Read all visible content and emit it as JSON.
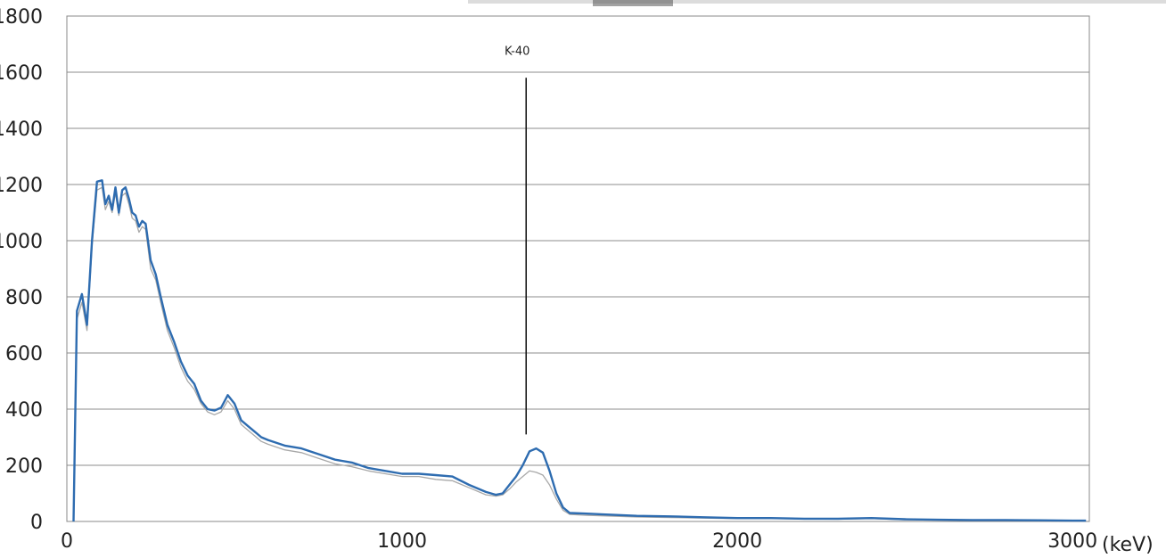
{
  "chart_data": {
    "type": "line",
    "title": "",
    "xlabel": "",
    "ylabel": "",
    "x_unit": "(keV)",
    "xlim": [
      0,
      3050
    ],
    "ylim": [
      0,
      1800
    ],
    "x_ticks": [
      0,
      1000,
      2000,
      3000
    ],
    "x_tick_labels": [
      "0",
      "1000",
      "2000",
      "3000"
    ],
    "y_ticks": [
      0,
      200,
      400,
      600,
      800,
      1000,
      1200,
      1400,
      1600,
      1800
    ],
    "y_tick_labels": [
      "0",
      "200",
      "400",
      "600",
      "800",
      "1000",
      "1200",
      "1400",
      "1600",
      "1800"
    ],
    "grid": "horizontal",
    "legend": "none",
    "annotations": [
      {
        "text": "K-40",
        "x": 1370,
        "y_from": 310,
        "y_to": 1580
      }
    ],
    "series": [
      {
        "color": "#2e6cb0",
        "x": [
          20,
          30,
          45,
          60,
          75,
          90,
          105,
          115,
          125,
          135,
          145,
          155,
          165,
          175,
          185,
          195,
          205,
          215,
          225,
          235,
          250,
          265,
          280,
          300,
          320,
          340,
          360,
          380,
          400,
          420,
          440,
          460,
          480,
          500,
          520,
          540,
          560,
          580,
          600,
          650,
          700,
          750,
          800,
          850,
          900,
          950,
          1000,
          1050,
          1100,
          1150,
          1200,
          1250,
          1280,
          1300,
          1320,
          1340,
          1360,
          1380,
          1400,
          1420,
          1440,
          1460,
          1480,
          1500,
          1550,
          1600,
          1700,
          1800,
          1900,
          2000,
          2100,
          2200,
          2300,
          2400,
          2500,
          2600,
          2700,
          2800,
          2900,
          3000,
          3040
        ],
        "values": [
          0,
          750,
          810,
          700,
          1000,
          1210,
          1215,
          1130,
          1160,
          1110,
          1190,
          1100,
          1180,
          1190,
          1150,
          1100,
          1090,
          1050,
          1070,
          1060,
          930,
          880,
          800,
          700,
          640,
          570,
          520,
          490,
          430,
          400,
          395,
          405,
          450,
          420,
          360,
          340,
          320,
          300,
          290,
          270,
          260,
          240,
          220,
          210,
          190,
          180,
          170,
          170,
          165,
          160,
          130,
          105,
          95,
          100,
          130,
          160,
          200,
          250,
          260,
          245,
          180,
          100,
          50,
          30,
          28,
          25,
          20,
          18,
          15,
          12,
          12,
          10,
          10,
          12,
          8,
          6,
          5,
          5,
          4,
          3,
          3
        ]
      },
      {
        "color": "#a8a8a8",
        "x": [
          20,
          30,
          45,
          60,
          75,
          90,
          105,
          115,
          125,
          135,
          145,
          155,
          165,
          175,
          185,
          195,
          205,
          215,
          225,
          235,
          250,
          265,
          280,
          300,
          320,
          340,
          360,
          380,
          400,
          420,
          440,
          460,
          480,
          500,
          520,
          540,
          560,
          580,
          600,
          650,
          700,
          750,
          800,
          850,
          900,
          950,
          1000,
          1050,
          1100,
          1150,
          1200,
          1250,
          1280,
          1300,
          1320,
          1340,
          1360,
          1380,
          1400,
          1420,
          1440,
          1460,
          1480,
          1500,
          1550,
          1600,
          1700,
          1800,
          1900,
          2000,
          2100,
          2200,
          2300,
          2400,
          2500,
          2600,
          2700,
          2800,
          2900,
          3000,
          3040
        ],
        "values": [
          0,
          720,
          780,
          680,
          980,
          1180,
          1190,
          1110,
          1140,
          1100,
          1170,
          1090,
          1160,
          1170,
          1130,
          1080,
          1070,
          1030,
          1050,
          1040,
          900,
          860,
          780,
          680,
          620,
          550,
          500,
          470,
          420,
          390,
          380,
          390,
          430,
          400,
          345,
          325,
          305,
          285,
          275,
          255,
          245,
          225,
          205,
          195,
          180,
          170,
          160,
          160,
          150,
          145,
          120,
          95,
          90,
          95,
          115,
          140,
          160,
          180,
          175,
          165,
          130,
          80,
          40,
          25,
          22,
          20,
          16,
          14,
          12,
          10,
          10,
          9,
          8,
          10,
          6,
          5,
          4,
          4,
          3,
          2,
          2
        ]
      }
    ]
  }
}
